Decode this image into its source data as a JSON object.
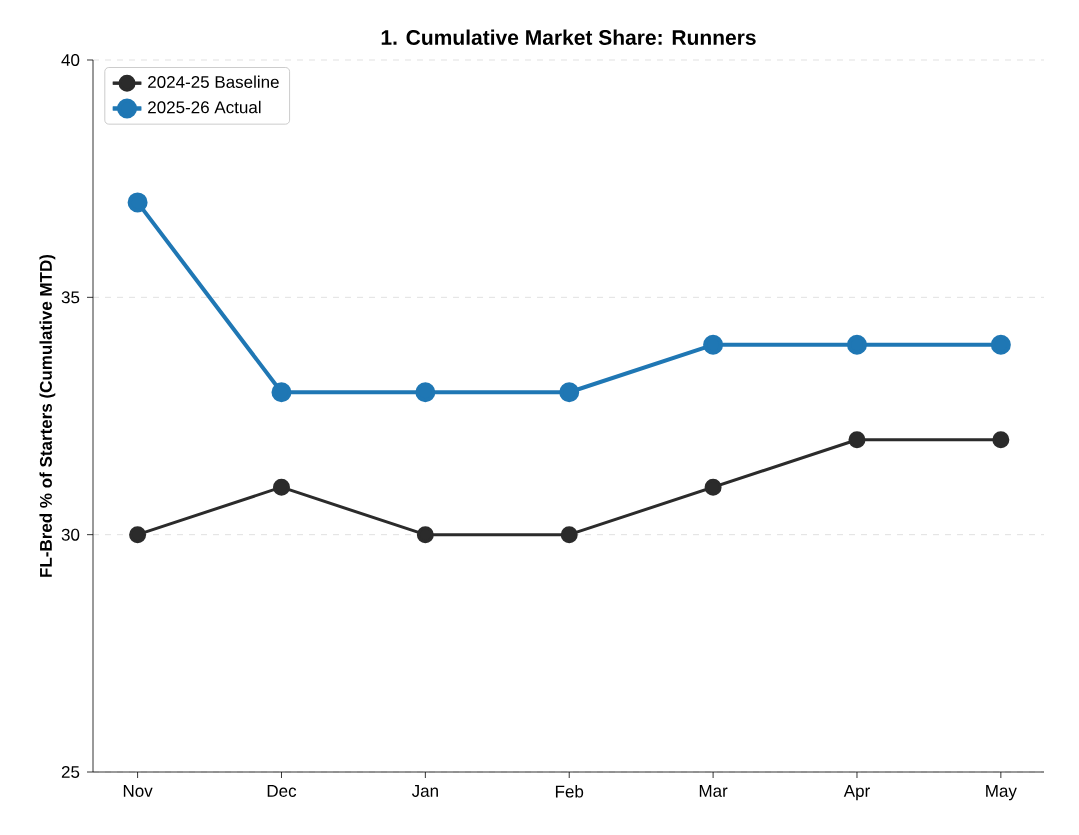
{
  "chart_data": {
    "type": "line",
    "title": "1. Cumulative Market Share: Runners",
    "ylabel": "FL-Bred % of Starters (Cumulative MTD)",
    "categories": [
      "Nov",
      "Dec",
      "Jan",
      "Feb",
      "Mar",
      "Apr",
      "May"
    ],
    "series": [
      {
        "name": "2024-25 Baseline",
        "color": "#2b2b2b",
        "values": [
          30,
          31,
          30,
          30,
          31,
          32,
          32
        ]
      },
      {
        "name": "2025-26 Actual",
        "color": "#1f77b4",
        "values": [
          37,
          33,
          33,
          33,
          34,
          34,
          34
        ]
      }
    ],
    "ylim": [
      25,
      40
    ],
    "yticks": [
      25,
      30,
      35,
      40
    ],
    "grid": "y",
    "legend": "top left",
    "marker": "circle",
    "line_style": "solid"
  }
}
